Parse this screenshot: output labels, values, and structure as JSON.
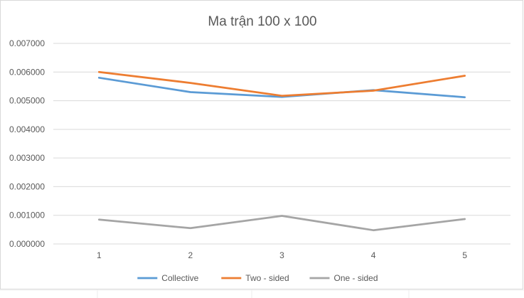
{
  "chart_data": {
    "type": "line",
    "title": "Ma trận 100 x 100",
    "xlabel": "",
    "ylabel": "",
    "categories": [
      "1",
      "2",
      "3",
      "4",
      "5"
    ],
    "ylim": [
      0,
      0.007
    ],
    "yticks": [
      "0.000000",
      "0.001000",
      "0.002000",
      "0.003000",
      "0.004000",
      "0.005000",
      "0.006000",
      "0.007000"
    ],
    "grid": true,
    "legend_position": "bottom",
    "series": [
      {
        "name": "Collective",
        "color": "#5b9bd5",
        "values": [
          0.0058,
          0.0053,
          0.00513,
          0.00537,
          0.00512
        ]
      },
      {
        "name": "Two - sided",
        "color": "#ed7d31",
        "values": [
          0.006,
          0.00562,
          0.00517,
          0.00535,
          0.00587
        ]
      },
      {
        "name": "One - sided",
        "color": "#a5a5a5",
        "values": [
          0.00085,
          0.00055,
          0.00098,
          0.00048,
          0.00087
        ]
      }
    ]
  }
}
